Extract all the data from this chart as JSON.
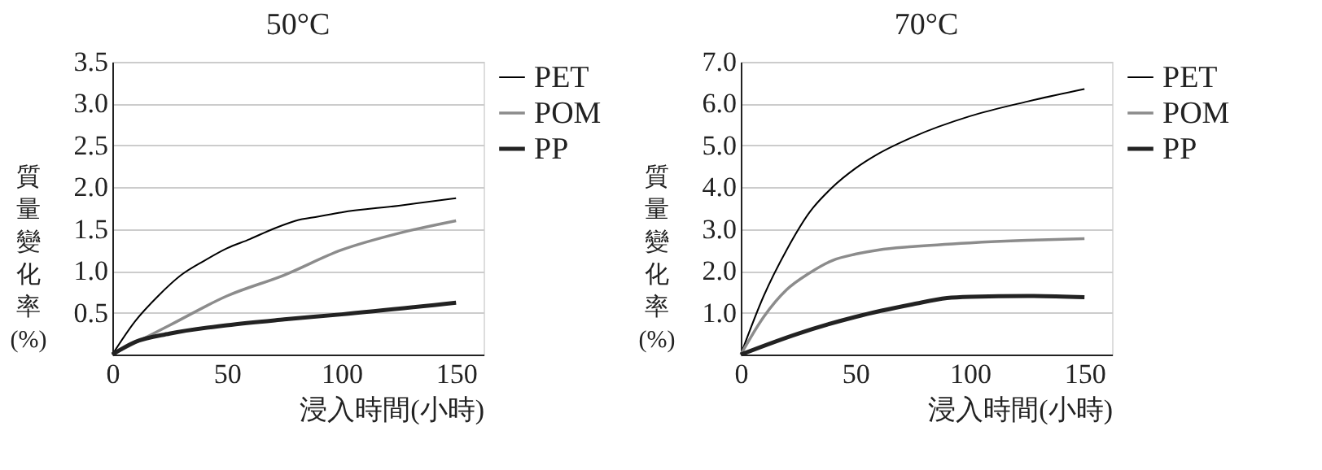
{
  "chart_data": [
    {
      "type": "line",
      "title": "50°C",
      "xlabel": "浸入時間(小時)",
      "ylabel": "質量變化率(%)",
      "xlim": [
        0,
        162
      ],
      "xticks": [
        0,
        50,
        100,
        150
      ],
      "ylim": [
        0,
        3.5
      ],
      "yticks": [
        0.5,
        {
          "value": 1,
          "label": "1.0"
        },
        1.5,
        {
          "value": 2,
          "label": "2.0"
        },
        2.5,
        {
          "value": 3,
          "label": "3.0"
        },
        3.5
      ],
      "grid": "y",
      "legend": "right",
      "marker": "none",
      "line_style": "solid",
      "series": [
        {
          "name": "PET",
          "color": "#000000",
          "x": [
            0,
            10,
            20,
            30,
            40,
            50,
            60,
            70,
            80,
            90,
            100,
            125,
            150
          ],
          "values": [
            0,
            0.4,
            0.7,
            0.95,
            1.12,
            1.27,
            1.38,
            1.5,
            1.6,
            1.65,
            1.7,
            1.78,
            1.87
          ]
        },
        {
          "name": "POM",
          "color": "#8c8c8c",
          "x": [
            0,
            25,
            50,
            75,
            100,
            125,
            150
          ],
          "values": [
            0,
            0.35,
            0.7,
            0.95,
            1.25,
            1.45,
            1.6
          ]
        },
        {
          "name": "PP",
          "color": "#222222",
          "x": [
            0,
            10,
            25,
            50,
            75,
            100,
            150
          ],
          "values": [
            0,
            0.15,
            0.25,
            0.35,
            0.42,
            0.48,
            0.62
          ]
        }
      ]
    },
    {
      "type": "line",
      "title": "70°C",
      "xlabel": "浸入時間(小時)",
      "ylabel": "質量變化率(%)",
      "xlim": [
        0,
        162
      ],
      "xticks": [
        0,
        50,
        100,
        150
      ],
      "ylim": [
        0,
        7
      ],
      "yticks": [
        {
          "value": 1,
          "label": "1.0"
        },
        {
          "value": 2,
          "label": "2.0"
        },
        {
          "value": 3,
          "label": "3.0"
        },
        {
          "value": 4,
          "label": "4.0"
        },
        {
          "value": 5,
          "label": "5.0"
        },
        {
          "value": 6,
          "label": "6.0"
        },
        {
          "value": 7,
          "label": "7.0"
        }
      ],
      "grid": "y",
      "legend": "right",
      "marker": "none",
      "line_style": "solid",
      "series": [
        {
          "name": "PET",
          "color": "#000000",
          "x": [
            0,
            10,
            20,
            30,
            40,
            50,
            60,
            75,
            100,
            125,
            150
          ],
          "values": [
            0,
            1.4,
            2.5,
            3.4,
            4.0,
            4.45,
            4.8,
            5.2,
            5.7,
            6.05,
            6.35
          ]
        },
        {
          "name": "POM",
          "color": "#8c8c8c",
          "x": [
            0,
            10,
            20,
            30,
            40,
            50,
            60,
            75,
            100,
            125,
            150
          ],
          "values": [
            0,
            0.9,
            1.55,
            1.95,
            2.25,
            2.4,
            2.5,
            2.58,
            2.67,
            2.73,
            2.77
          ]
        },
        {
          "name": "PP",
          "color": "#222222",
          "x": [
            0,
            25,
            50,
            75,
            90,
            100,
            125,
            150
          ],
          "values": [
            0,
            0.5,
            0.9,
            1.2,
            1.35,
            1.38,
            1.4,
            1.37
          ]
        }
      ]
    }
  ]
}
